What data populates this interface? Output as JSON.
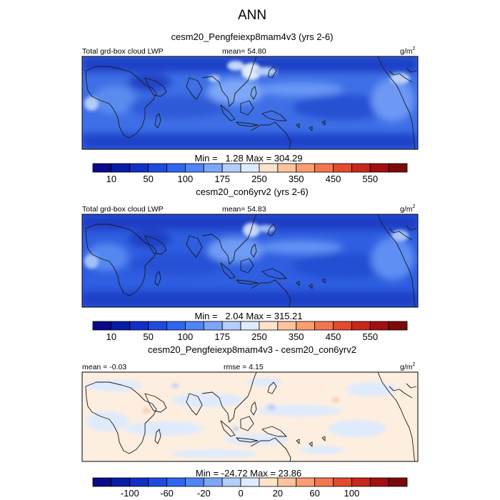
{
  "chart_data": {
    "type": "heatmap",
    "title": "ANN",
    "panels": [
      {
        "subtitle": "cesm20_Pengfeiexp8mam4v3 (yrs 2-6)",
        "left_label": "Total grd-box cloud LWP",
        "center_label": "mean=  54.80",
        "units": "g/m",
        "units_sup": "2",
        "mean": 54.8,
        "min": 1.28,
        "max": 304.29,
        "minmax_label": "Min =   1.28 Max = 304.29",
        "variant": "cyan"
      },
      {
        "subtitle": "cesm20_con6yrv2 (yrs 2-6)",
        "left_label": "Total grd-box cloud LWP",
        "center_label": "mean=  54.83",
        "units": "g/m",
        "units_sup": "2",
        "mean": 54.83,
        "min": 2.04,
        "max": 315.21,
        "minmax_label": "Min =   2.04 Max = 315.21",
        "variant": "blue"
      },
      {
        "subtitle": "cesm20_Pengfeiexp8mam4v3 - cesm20_con6yrv2",
        "left_label": "mean = -0.03",
        "center_label": "rmse =   4.15",
        "units": "g/m",
        "units_sup": "2",
        "mean": -0.03,
        "rmse": 4.15,
        "min": -24.72,
        "max": 23.86,
        "minmax_label": "Min = -24.72 Max = 23.86",
        "variant": "diff"
      }
    ],
    "colorbars": [
      {
        "colors": [
          "#0c0a89",
          "#081ca6",
          "#1130c6",
          "#1f4bdd",
          "#2f66ef",
          "#4f85f4",
          "#7da6f7",
          "#b3cefa",
          "#dfebfc",
          "#fde3cb",
          "#fcc39d",
          "#fa9e72",
          "#f4764e",
          "#e34a2e",
          "#c6281b",
          "#a20f10",
          "#7d0a0a"
        ],
        "tick_labels": [
          "10",
          "50",
          "100",
          "175",
          "250",
          "350",
          "450",
          "550"
        ],
        "tick_bounds": [
          1,
          3,
          5,
          7,
          9,
          11,
          13,
          15
        ]
      },
      {
        "colors": [
          "#0c0a89",
          "#081ca6",
          "#1130c6",
          "#1f4bdd",
          "#2f66ef",
          "#4f85f4",
          "#7da6f7",
          "#b3cefa",
          "#dfebfc",
          "#fde3cb",
          "#fcc39d",
          "#fa9e72",
          "#f4764e",
          "#e34a2e",
          "#c6281b",
          "#a20f10",
          "#7d0a0a"
        ],
        "tick_labels": [
          "10",
          "50",
          "100",
          "175",
          "250",
          "350",
          "450",
          "550"
        ],
        "tick_bounds": [
          1,
          3,
          5,
          7,
          9,
          11,
          13,
          15
        ]
      },
      {
        "colors": [
          "#0c0a89",
          "#081ca6",
          "#1130c6",
          "#1f4bdd",
          "#2f66ef",
          "#4f85f4",
          "#7da6f7",
          "#b3cefa",
          "#dfebfc",
          "#fde3cb",
          "#fcc39d",
          "#fa9e72",
          "#f4764e",
          "#e34a2e",
          "#c6281b",
          "#a20f10",
          "#7d0a0a"
        ],
        "tick_labels": [
          "-100",
          "-60",
          "-20",
          "0",
          "20",
          "60",
          "100"
        ],
        "tick_bounds": [
          2,
          4,
          6,
          8,
          10,
          12,
          14
        ]
      }
    ]
  }
}
